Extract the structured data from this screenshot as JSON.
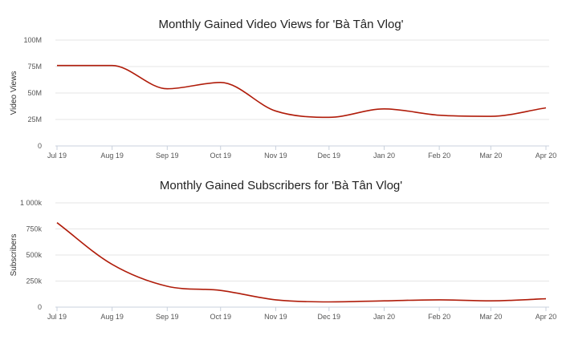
{
  "chart_data": [
    {
      "type": "line",
      "title": "Monthly Gained Video Views for 'Bà Tân Vlog'",
      "xlabel": "",
      "ylabel": "Video Views",
      "categories": [
        "Jul 19",
        "Aug 19",
        "Sep 19",
        "Oct 19",
        "Nov 19",
        "Dec 19",
        "Jan 20",
        "Feb 20",
        "Mar 20",
        "Apr 20"
      ],
      "day_offsets": [
        0,
        31,
        62,
        92,
        123,
        153,
        184,
        215,
        244,
        275
      ],
      "series": [
        {
          "name": "Video Views",
          "values": [
            76000000,
            76000000,
            54000000,
            60000000,
            33000000,
            27000000,
            35000000,
            29000000,
            28000000,
            36000000
          ]
        }
      ],
      "ylim": [
        0,
        100000000
      ],
      "yticks": [
        0,
        25000000,
        50000000,
        75000000,
        100000000
      ],
      "ytick_labels": [
        "0",
        "25M",
        "50M",
        "75M",
        "100M"
      ],
      "grid": true,
      "line_color": "#b01c0a"
    },
    {
      "type": "line",
      "title": "Monthly Gained Subscribers for 'Bà Tân Vlog'",
      "xlabel": "",
      "ylabel": "Subscribers",
      "categories": [
        "Jul 19",
        "Aug 19",
        "Sep 19",
        "Oct 19",
        "Nov 19",
        "Dec 19",
        "Jan 20",
        "Feb 20",
        "Mar 20",
        "Apr 20"
      ],
      "day_offsets": [
        0,
        31,
        62,
        92,
        123,
        153,
        184,
        215,
        244,
        275
      ],
      "series": [
        {
          "name": "Subscribers",
          "values": [
            810000,
            410000,
            200000,
            160000,
            70000,
            50000,
            60000,
            70000,
            60000,
            80000
          ]
        }
      ],
      "ylim": [
        0,
        1000000
      ],
      "yticks": [
        0,
        250000,
        500000,
        750000,
        1000000
      ],
      "ytick_labels": [
        "0",
        "250k",
        "500k",
        "750k",
        "1 000k"
      ],
      "grid": true,
      "line_color": "#b01c0a"
    }
  ]
}
